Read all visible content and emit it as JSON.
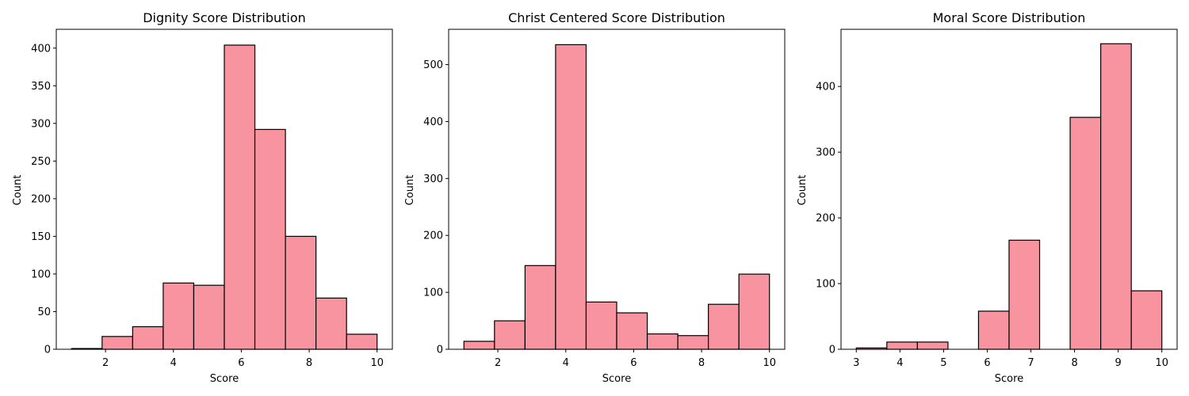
{
  "chart_data": [
    {
      "type": "bar",
      "title": "Dignity Score Distribution",
      "xlabel": "Score",
      "ylabel": "Count",
      "bin_edges": [
        1.0,
        1.9,
        2.8,
        3.7,
        4.6,
        5.5,
        6.4,
        7.3,
        8.2,
        9.1,
        10.0
      ],
      "values": [
        1,
        17,
        30,
        88,
        85,
        404,
        292,
        150,
        68,
        20
      ],
      "xlim": [
        0.55,
        10.45
      ],
      "ylim": [
        0,
        425
      ],
      "xticks": [
        2,
        4,
        6,
        8,
        10
      ],
      "yticks": [
        0,
        50,
        100,
        150,
        200,
        250,
        300,
        350,
        400
      ],
      "color": "#f7949f",
      "grid": false
    },
    {
      "type": "bar",
      "title": "Christ Centered Score Distribution",
      "xlabel": "Score",
      "ylabel": "Count",
      "bin_edges": [
        1.0,
        1.9,
        2.8,
        3.7,
        4.6,
        5.5,
        6.4,
        7.3,
        8.2,
        9.1,
        10.0
      ],
      "values": [
        14,
        50,
        147,
        535,
        83,
        64,
        27,
        24,
        79,
        132
      ],
      "xlim": [
        0.55,
        10.45
      ],
      "ylim": [
        0,
        562
      ],
      "xticks": [
        2,
        4,
        6,
        8,
        10
      ],
      "yticks": [
        0,
        100,
        200,
        300,
        400,
        500
      ],
      "color": "#f7949f",
      "grid": false
    },
    {
      "type": "bar",
      "title": "Moral Score Distribution",
      "xlabel": "Score",
      "ylabel": "Count",
      "bin_edges": [
        3.0,
        3.7,
        4.4,
        5.1,
        5.8,
        6.5,
        7.2,
        7.9,
        8.6,
        9.3,
        10.0
      ],
      "values": [
        2,
        11,
        11,
        0,
        58,
        166,
        0,
        353,
        465,
        89
      ],
      "xlim": [
        2.65,
        10.35
      ],
      "ylim": [
        0,
        487
      ],
      "xticks": [
        3,
        4,
        5,
        6,
        7,
        8,
        9,
        10
      ],
      "yticks": [
        0,
        100,
        200,
        300,
        400
      ],
      "color": "#f7949f",
      "grid": false
    }
  ]
}
